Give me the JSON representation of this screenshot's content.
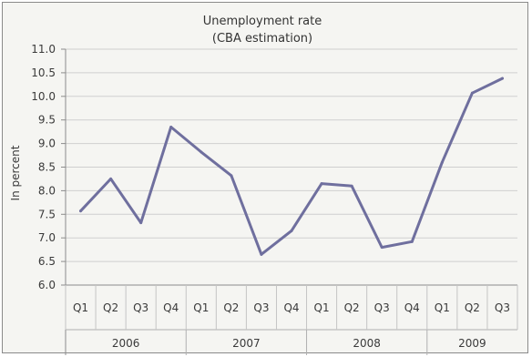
{
  "chart_data": {
    "type": "line",
    "title": "Unemployment rate",
    "subtitle": "(CBA estimation)",
    "ylabel": "In percent",
    "xlabel": "",
    "ylim": [
      6.0,
      11.0
    ],
    "yticks": [
      "6.0",
      "6.5",
      "7.0",
      "7.5",
      "8.0",
      "8.5",
      "9.0",
      "9.5",
      "10.0",
      "10.5",
      "11.0"
    ],
    "categories": [
      "Q1",
      "Q2",
      "Q3",
      "Q4",
      "Q1",
      "Q2",
      "Q3",
      "Q4",
      "Q1",
      "Q2",
      "Q3",
      "Q4",
      "Q1",
      "Q2",
      "Q3"
    ],
    "years": [
      {
        "label": "2006",
        "span": 4
      },
      {
        "label": "2007",
        "span": 4
      },
      {
        "label": "2008",
        "span": 4
      },
      {
        "label": "2009",
        "span": 3
      }
    ],
    "values": [
      7.57,
      8.25,
      7.32,
      9.35,
      8.82,
      8.32,
      6.65,
      7.15,
      8.15,
      8.1,
      6.8,
      6.92,
      8.6,
      10.07,
      10.38
    ],
    "grid": true,
    "legend": "none",
    "line_color": "#6f6f9e",
    "grid_color": "#cfcfcf"
  }
}
